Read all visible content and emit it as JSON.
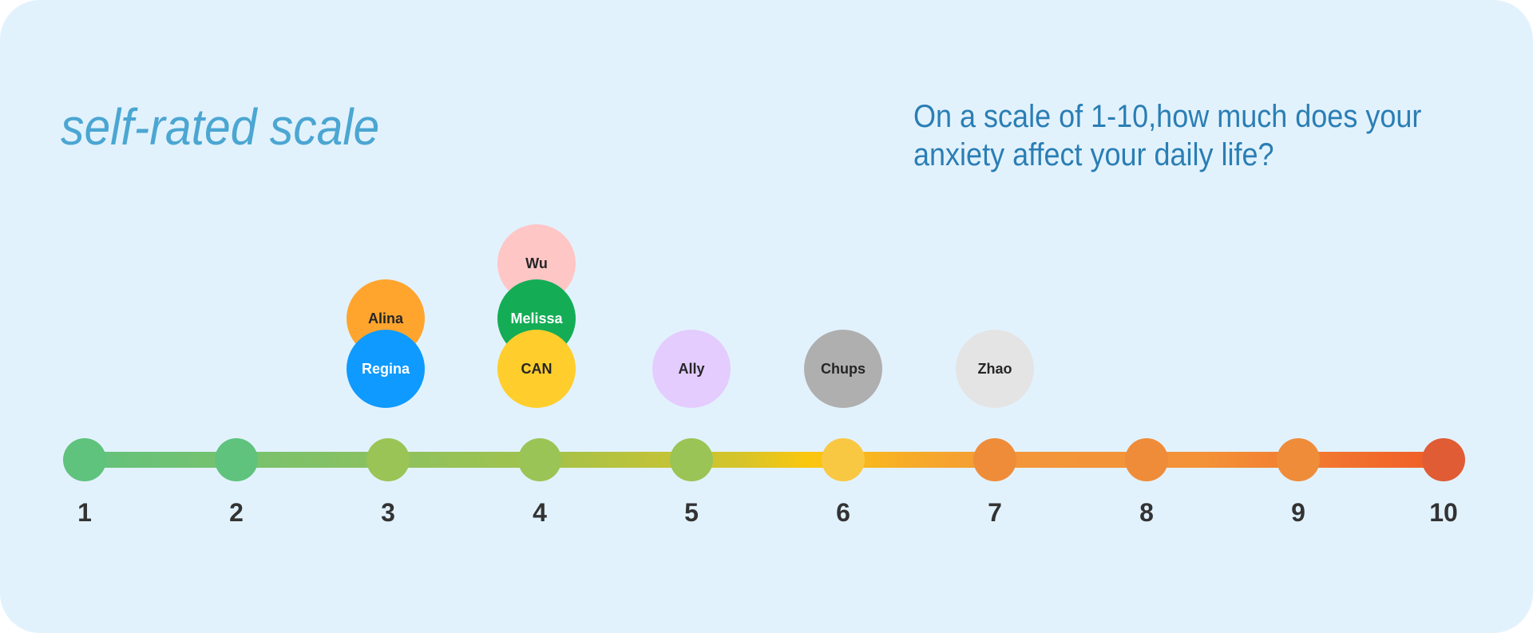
{
  "title": "self-rated scale",
  "question": "On a scale of 1-10,how much does your anxiety affect your daily life?",
  "scale": {
    "points": [
      {
        "label": "1",
        "color": "#5fc27d"
      },
      {
        "label": "2",
        "color": "#5fc27d"
      },
      {
        "label": "3",
        "color": "#9ac455"
      },
      {
        "label": "4",
        "color": "#9ac455"
      },
      {
        "label": "5",
        "color": "#9ac455"
      },
      {
        "label": "6",
        "color": "#f9c843"
      },
      {
        "label": "7",
        "color": "#ef8c3a"
      },
      {
        "label": "8",
        "color": "#ef8c3a"
      },
      {
        "label": "9",
        "color": "#ef8c3a"
      },
      {
        "label": "10",
        "color": "#e05c35"
      }
    ]
  },
  "responses": [
    {
      "name": "Wu",
      "rating": 4,
      "color": "#ffc6c6",
      "text_light": false
    },
    {
      "name": "Alina",
      "rating": 3,
      "color": "#ffa52e",
      "text_light": false
    },
    {
      "name": "Melissa",
      "rating": 4,
      "color": "#14ad56",
      "text_light": true
    },
    {
      "name": "Regina",
      "rating": 3,
      "color": "#0f9aff",
      "text_light": true
    },
    {
      "name": "CAN",
      "rating": 4,
      "color": "#ffce2c",
      "text_light": false
    },
    {
      "name": "Ally",
      "rating": 5,
      "color": "#e4ccfe",
      "text_light": false
    },
    {
      "name": "Chups",
      "rating": 6,
      "color": "#afafaf",
      "text_light": false
    },
    {
      "name": "Zhao",
      "rating": 7,
      "color": "#e4e4e4",
      "text_light": false
    }
  ]
}
